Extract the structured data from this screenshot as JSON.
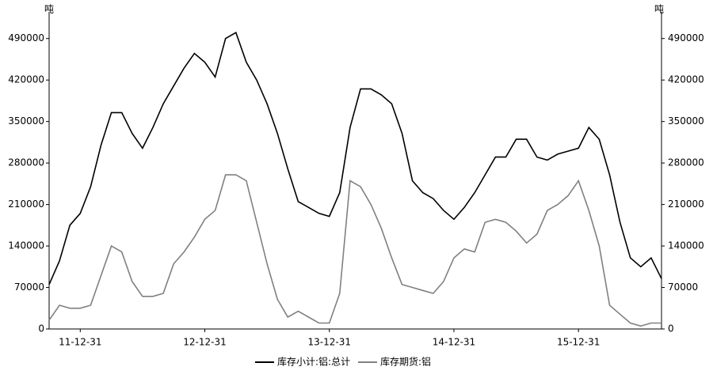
{
  "chart_data": {
    "type": "line",
    "y_label": "吨",
    "y2_label": "吨",
    "categories": [
      null,
      null,
      null,
      "11-12-31",
      null,
      null,
      null,
      null,
      null,
      null,
      null,
      null,
      null,
      null,
      null,
      "12-12-31",
      null,
      null,
      null,
      null,
      null,
      null,
      null,
      null,
      null,
      null,
      null,
      "13-12-31",
      null,
      null,
      null,
      null,
      null,
      null,
      null,
      null,
      null,
      null,
      null,
      "14-12-31",
      null,
      null,
      null,
      null,
      null,
      null,
      null,
      null,
      null,
      null,
      null,
      "15-12-31",
      null,
      null,
      null,
      null,
      null,
      null,
      null,
      null
    ],
    "series": [
      {
        "name": "库存小计:铝:总计",
        "color": "#000000",
        "values": [
          75000,
          115000,
          175000,
          195000,
          240000,
          310000,
          365000,
          365000,
          330000,
          305000,
          340000,
          380000,
          410000,
          440000,
          465000,
          450000,
          425000,
          490000,
          500000,
          450000,
          420000,
          380000,
          330000,
          270000,
          215000,
          205000,
          195000,
          190000,
          230000,
          340000,
          405000,
          405000,
          395000,
          380000,
          330000,
          250000,
          230000,
          220000,
          200000,
          185000,
          205000,
          230000,
          260000,
          290000,
          290000,
          320000,
          320000,
          290000,
          285000,
          295000,
          300000,
          305000,
          340000,
          320000,
          260000,
          180000,
          120000,
          105000,
          120000,
          85000
        ]
      },
      {
        "name": "库存期货:铝",
        "color": "#808080",
        "values": [
          15000,
          40000,
          35000,
          35000,
          40000,
          90000,
          140000,
          130000,
          80000,
          55000,
          55000,
          60000,
          110000,
          130000,
          155000,
          185000,
          200000,
          260000,
          260000,
          250000,
          180000,
          110000,
          50000,
          20000,
          30000,
          20000,
          10000,
          10000,
          60000,
          250000,
          240000,
          210000,
          170000,
          120000,
          75000,
          70000,
          65000,
          60000,
          80000,
          120000,
          135000,
          130000,
          180000,
          185000,
          180000,
          165000,
          145000,
          160000,
          200000,
          210000,
          225000,
          250000,
          200000,
          140000,
          40000,
          25000,
          10000,
          5000,
          10000,
          10000
        ]
      }
    ],
    "ylim": [
      0,
      535000
    ],
    "yticks": [
      0,
      70000,
      140000,
      210000,
      280000,
      350000,
      420000,
      490000
    ],
    "y2lim": [
      0,
      535000
    ],
    "y2ticks": [
      0,
      70000,
      140000,
      210000,
      280000,
      350000,
      420000,
      490000
    ],
    "grid": false
  }
}
